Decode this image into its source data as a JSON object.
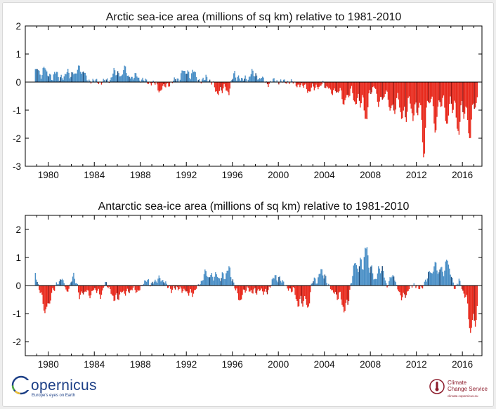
{
  "colors": {
    "positive": "#4a8fc6",
    "negative": "#e8291c",
    "year_pos": "#1d4a78",
    "year_neg": "#9c1510"
  },
  "logos": {
    "copernicus_name": "opernicus",
    "copernicus_tagline": "Europe's eyes on Earth",
    "c3s_line1": "Climate",
    "c3s_line2": "Change Service",
    "c3s_url": "climate.copernicus.eu"
  },
  "chart_data": [
    {
      "type": "bar",
      "title": "Arctic sea-ice area (millions of sq km) relative to 1981-2010",
      "ylim": [
        -3,
        2
      ],
      "yticks": [
        2,
        1,
        0,
        -1,
        -2,
        -3
      ],
      "xlim": [
        1978.0,
        2017.7
      ],
      "xticks": [
        1980,
        1984,
        1988,
        1992,
        1996,
        2000,
        2004,
        2008,
        2012,
        2016
      ],
      "monthly_start": [
        1978,
        11
      ],
      "monthly_end": [
        2017,
        4
      ],
      "anchors": [
        [
          1978.9,
          0.6
        ],
        [
          1979.3,
          0.5
        ],
        [
          1979.8,
          0.4
        ],
        [
          1980.4,
          0.3
        ],
        [
          1981.0,
          0.25
        ],
        [
          1981.6,
          0.3
        ],
        [
          1982.3,
          0.45
        ],
        [
          1983.0,
          0.5
        ],
        [
          1983.5,
          0.1
        ],
        [
          1984.0,
          0.05
        ],
        [
          1984.6,
          0.0
        ],
        [
          1985.2,
          0.1
        ],
        [
          1985.9,
          0.4
        ],
        [
          1986.5,
          0.45
        ],
        [
          1987.2,
          0.25
        ],
        [
          1987.8,
          0.2
        ],
        [
          1988.5,
          0.05
        ],
        [
          1989.2,
          -0.1
        ],
        [
          1989.8,
          -0.3
        ],
        [
          1990.4,
          -0.15
        ],
        [
          1991.0,
          0.1
        ],
        [
          1991.6,
          0.3
        ],
        [
          1992.1,
          0.5
        ],
        [
          1992.7,
          0.3
        ],
        [
          1993.3,
          0.05
        ],
        [
          1993.9,
          0.2
        ],
        [
          1994.5,
          -0.3
        ],
        [
          1995.1,
          -0.4
        ],
        [
          1995.7,
          -0.3
        ],
        [
          1996.2,
          0.4
        ],
        [
          1996.8,
          0.1
        ],
        [
          1997.3,
          0.2
        ],
        [
          1997.9,
          0.35
        ],
        [
          1998.5,
          0.2
        ],
        [
          1999.1,
          -0.1
        ],
        [
          1999.7,
          0.1
        ],
        [
          2000.3,
          0.0
        ],
        [
          2000.9,
          0.05
        ],
        [
          2001.5,
          -0.1
        ],
        [
          2002.1,
          -0.2
        ],
        [
          2002.7,
          -0.3
        ],
        [
          2003.3,
          -0.25
        ],
        [
          2003.9,
          -0.1
        ],
        [
          2004.5,
          -0.35
        ],
        [
          2005.1,
          -0.4
        ],
        [
          2005.7,
          -0.7
        ],
        [
          2006.3,
          -0.55
        ],
        [
          2006.9,
          -0.7
        ],
        [
          2007.5,
          -1.4
        ],
        [
          2007.9,
          -0.6
        ],
        [
          2008.4,
          -0.25
        ],
        [
          2008.9,
          -0.9
        ],
        [
          2009.5,
          -0.5
        ],
        [
          2010.0,
          -1.4
        ],
        [
          2010.5,
          -0.8
        ],
        [
          2011.0,
          -1.6
        ],
        [
          2011.5,
          -1.0
        ],
        [
          2012.2,
          -1.3
        ],
        [
          2012.6,
          -2.4
        ],
        [
          2013.0,
          -0.8
        ],
        [
          2013.6,
          -1.5
        ],
        [
          2014.0,
          -1.0
        ],
        [
          2014.6,
          -1.3
        ],
        [
          2015.0,
          -1.0
        ],
        [
          2015.5,
          -1.7
        ],
        [
          2016.0,
          -1.2
        ],
        [
          2016.5,
          -2.0
        ],
        [
          2016.9,
          -1.2
        ],
        [
          2017.3,
          -0.9
        ]
      ]
    },
    {
      "type": "bar",
      "title": "Antarctic sea-ice area (millions of sq km) relative to 1981-2010",
      "ylim": [
        -2.5,
        2.5
      ],
      "yticks": [
        2,
        1,
        0,
        -1,
        -2
      ],
      "xlim": [
        1978.0,
        2017.7
      ],
      "xticks": [
        1980,
        1984,
        1988,
        1992,
        1996,
        2000,
        2004,
        2008,
        2012,
        2016
      ],
      "monthly_start": [
        1978,
        11
      ],
      "monthly_end": [
        2017,
        4
      ],
      "anchors": [
        [
          1978.9,
          0.5
        ],
        [
          1979.2,
          -0.2
        ],
        [
          1979.6,
          -0.7
        ],
        [
          1979.9,
          -1.1
        ],
        [
          1980.3,
          -0.4
        ],
        [
          1980.8,
          0.1
        ],
        [
          1981.2,
          0.4
        ],
        [
          1981.6,
          -0.3
        ],
        [
          1982.2,
          0.5
        ],
        [
          1982.7,
          -0.3
        ],
        [
          1983.3,
          -0.4
        ],
        [
          1983.9,
          -0.2
        ],
        [
          1984.5,
          -0.4
        ],
        [
          1985.0,
          0.1
        ],
        [
          1985.5,
          -0.3
        ],
        [
          1985.9,
          -0.6
        ],
        [
          1986.5,
          -0.3
        ],
        [
          1987.2,
          -0.2
        ],
        [
          1987.8,
          -0.2
        ],
        [
          1988.5,
          0.2
        ],
        [
          1989.0,
          0.1
        ],
        [
          1989.6,
          0.3
        ],
        [
          1990.2,
          0.1
        ],
        [
          1990.8,
          -0.2
        ],
        [
          1991.4,
          -0.1
        ],
        [
          1992.0,
          -0.3
        ],
        [
          1992.5,
          -0.4
        ],
        [
          1993.1,
          0.1
        ],
        [
          1993.6,
          0.4
        ],
        [
          1994.2,
          0.5
        ],
        [
          1994.8,
          0.3
        ],
        [
          1995.3,
          0.5
        ],
        [
          1995.8,
          0.6
        ],
        [
          1996.3,
          -0.3
        ],
        [
          1996.8,
          -0.5
        ],
        [
          1997.3,
          -0.1
        ],
        [
          1997.9,
          -0.3
        ],
        [
          1998.5,
          -0.2
        ],
        [
          1999.0,
          -0.3
        ],
        [
          1999.5,
          0.2
        ],
        [
          2000.0,
          0.4
        ],
        [
          2000.5,
          0.1
        ],
        [
          2001.0,
          -0.2
        ],
        [
          2001.5,
          -0.4
        ],
        [
          2002.0,
          -0.8
        ],
        [
          2002.5,
          -0.9
        ],
        [
          2003.0,
          0.2
        ],
        [
          2003.5,
          0.4
        ],
        [
          2004.0,
          0.5
        ],
        [
          2004.5,
          -0.1
        ],
        [
          2005.0,
          -0.4
        ],
        [
          2005.5,
          -0.7
        ],
        [
          2006.0,
          -0.9
        ],
        [
          2006.5,
          0.6
        ],
        [
          2007.0,
          0.9
        ],
        [
          2007.5,
          1.4
        ],
        [
          2007.9,
          0.9
        ],
        [
          2008.5,
          0.3
        ],
        [
          2009.0,
          0.8
        ],
        [
          2009.5,
          0.0
        ],
        [
          2010.0,
          0.5
        ],
        [
          2010.5,
          -0.3
        ],
        [
          2010.9,
          -0.5
        ],
        [
          2011.4,
          -0.2
        ],
        [
          2011.9,
          0.1
        ],
        [
          2012.4,
          -0.3
        ],
        [
          2012.9,
          0.4
        ],
        [
          2013.4,
          0.8
        ],
        [
          2013.9,
          0.6
        ],
        [
          2014.4,
          0.9
        ],
        [
          2014.9,
          0.7
        ],
        [
          2015.3,
          -0.1
        ],
        [
          2015.7,
          0.2
        ],
        [
          2016.0,
          -0.2
        ],
        [
          2016.3,
          -0.6
        ],
        [
          2016.6,
          -1.3
        ],
        [
          2016.9,
          -1.7
        ],
        [
          2017.2,
          -1.5
        ]
      ]
    }
  ]
}
